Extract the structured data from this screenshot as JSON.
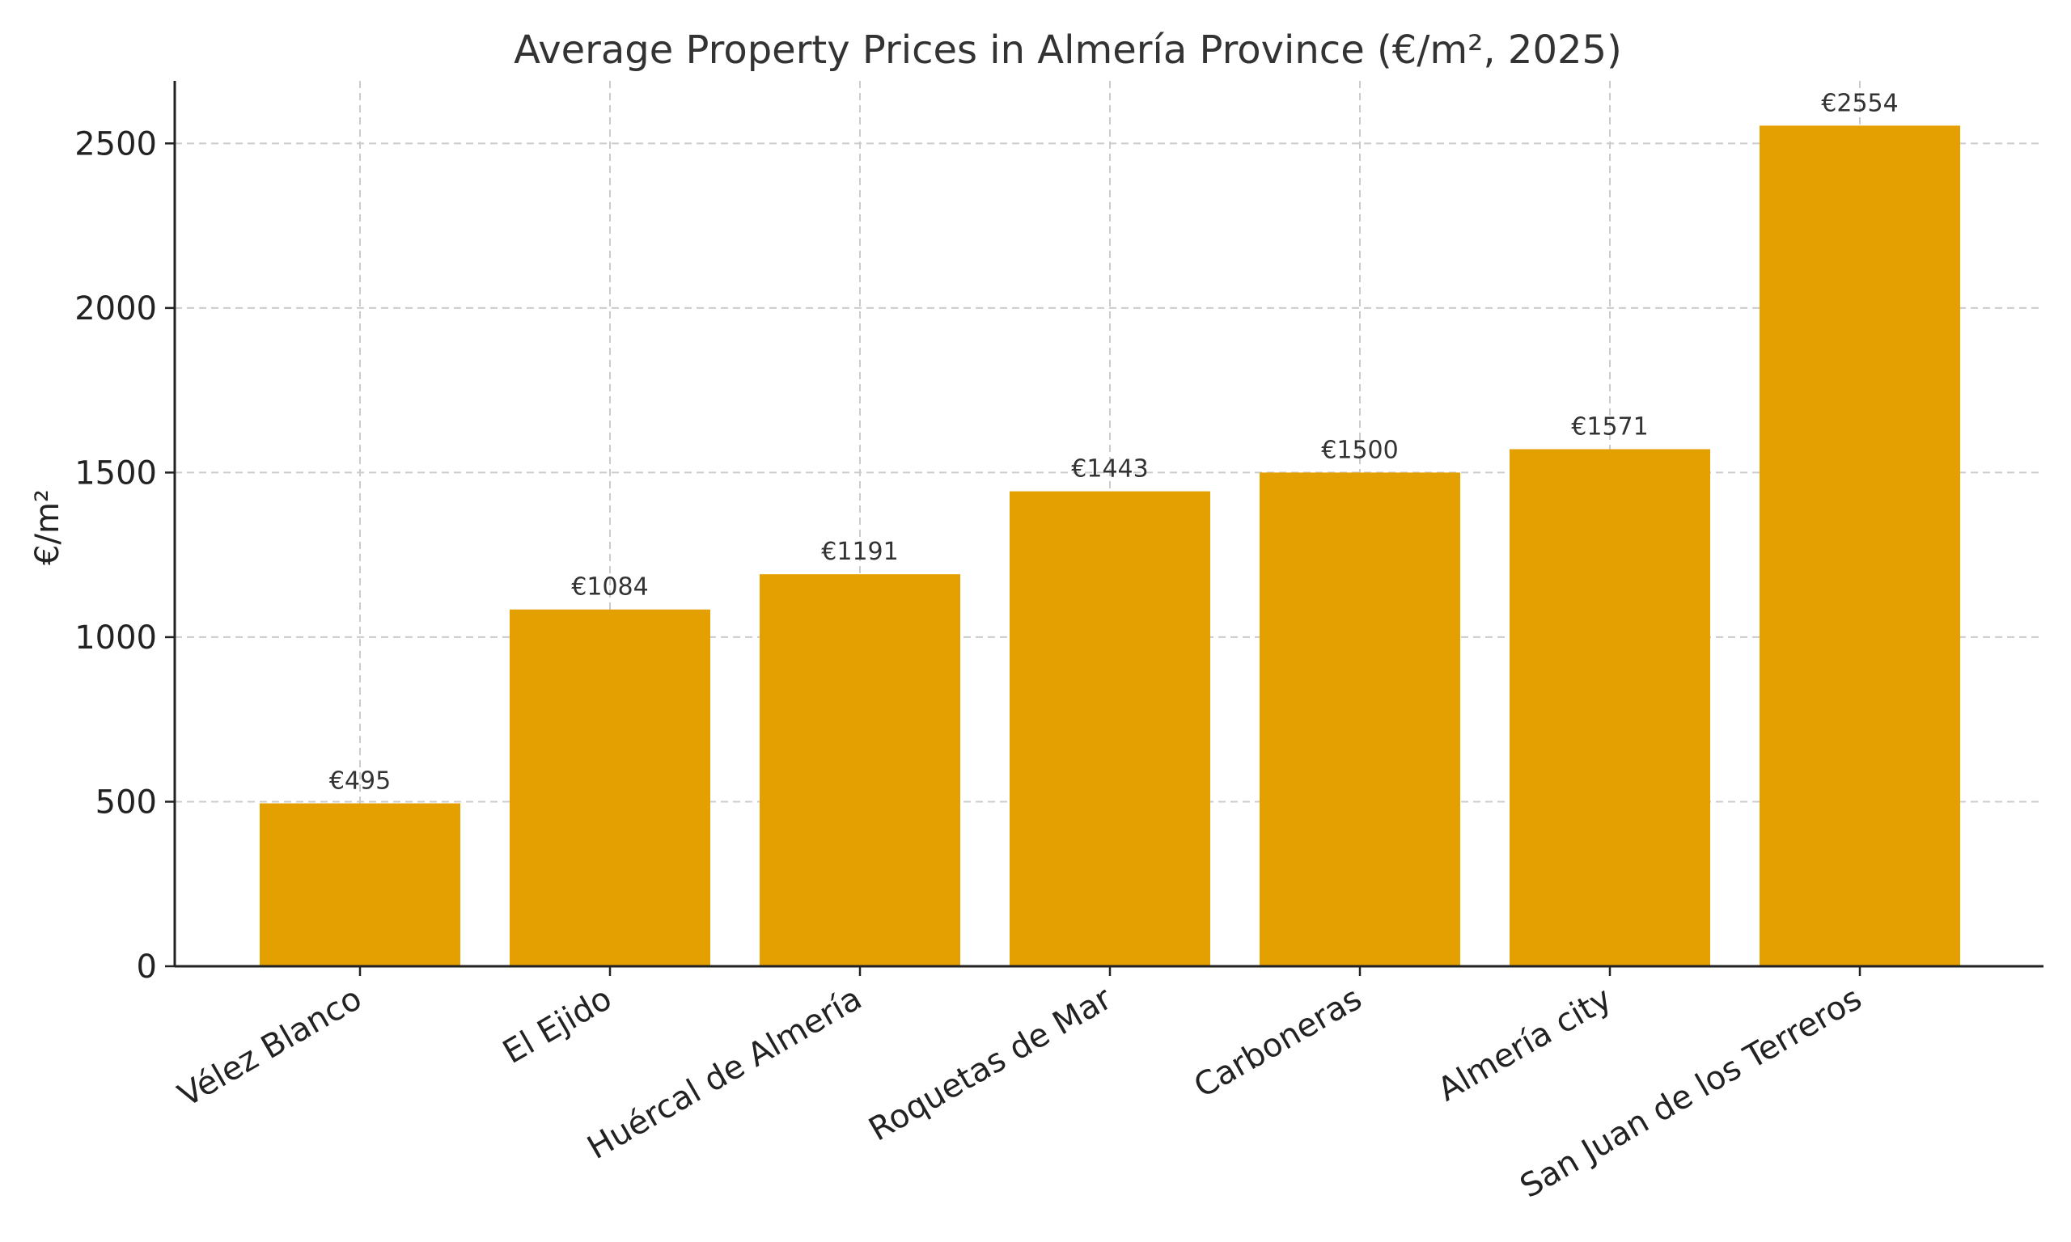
{
  "chart_data": {
    "type": "bar",
    "title": "Average Property Prices in Almería Province (€/m², 2025)",
    "xlabel": "",
    "ylabel": "€/m²",
    "categories": [
      "Vélez Blanco",
      "El Ejido",
      "Huércal de Almería",
      "Roquetas de Mar",
      "Carboneras",
      "Almería city",
      "San Juan de los Terreros"
    ],
    "values": [
      495,
      1084,
      1191,
      1443,
      1500,
      1571,
      2554
    ],
    "data_labels": [
      "€495",
      "€1084",
      "€1191",
      "€1443",
      "€1500",
      "€1571",
      "€2554"
    ],
    "yticks": [
      0,
      500,
      1000,
      1500,
      2000,
      2500
    ],
    "ylim": [
      0,
      2690
    ],
    "grid": true,
    "bar_color": "#E49F00"
  }
}
